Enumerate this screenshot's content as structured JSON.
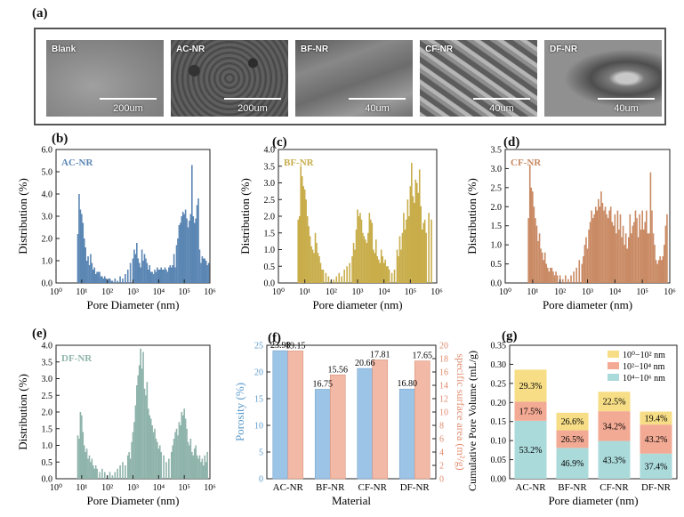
{
  "figure": {
    "labels": {
      "a": "(a)",
      "b": "(b)",
      "c": "(c)",
      "d": "(d)",
      "e": "(e)",
      "f": "(f)",
      "g": "(g)"
    },
    "sem_images": [
      {
        "label": "Blank",
        "scale": "200um"
      },
      {
        "label": "AC-NR",
        "scale": "200um"
      },
      {
        "label": "BF-NR",
        "scale": "40um"
      },
      {
        "label": "CF-NR",
        "scale": "40um"
      },
      {
        "label": "DF-NR",
        "scale": "40um"
      }
    ]
  },
  "colors": {
    "ac": "#5b86b4",
    "bf": "#c8ad4a",
    "cf": "#c98a64",
    "df": "#8fb4ab",
    "porosity": "#9cc4e6",
    "surface": "#f2b9a6",
    "seg1": "#abdadb",
    "seg2": "#f3aa94",
    "seg3": "#f6dd86"
  },
  "chart_data": [
    {
      "type": "bar",
      "panel": "b",
      "title": "AC-NR",
      "xlabel": "Pore Diameter (nm)",
      "ylabel": "Distribution (%)",
      "xscale": "log",
      "xlim": [
        1,
        1000000
      ],
      "ylim": [
        0,
        6.0
      ],
      "yticks": [
        "0.0",
        "1.0",
        "2.0",
        "3.0",
        "4.0",
        "5.0",
        "6.0"
      ],
      "xticks": [
        "10⁰",
        "10¹",
        "10²",
        "10³",
        "10⁴",
        "10⁵",
        "10⁶"
      ],
      "log_x": [
        0.85,
        0.9,
        0.95,
        1.0,
        1.05,
        1.1,
        1.15,
        1.2,
        1.25,
        1.3,
        1.35,
        1.4,
        1.45,
        1.5,
        1.55,
        1.6,
        1.65,
        1.7,
        1.75,
        1.8,
        1.85,
        1.9,
        1.95,
        2.0,
        2.05,
        2.1,
        2.15,
        2.2,
        2.3,
        2.4,
        2.5,
        2.6,
        2.7,
        2.8,
        2.9,
        3.0,
        3.05,
        3.1,
        3.15,
        3.2,
        3.25,
        3.3,
        3.35,
        3.4,
        3.45,
        3.5,
        3.55,
        3.6,
        3.65,
        3.7,
        3.75,
        3.8,
        3.85,
        3.9,
        3.95,
        4.0,
        4.05,
        4.1,
        4.15,
        4.2,
        4.25,
        4.3,
        4.35,
        4.4,
        4.45,
        4.5,
        4.55,
        4.6,
        4.65,
        4.7,
        4.75,
        4.8,
        4.85,
        4.9,
        4.95,
        5.0,
        5.05,
        5.1,
        5.15,
        5.2,
        5.25,
        5.3,
        5.35,
        5.4,
        5.45,
        5.5,
        5.55,
        5.6,
        5.65,
        5.7,
        5.75,
        5.8,
        5.85,
        5.9,
        5.95
      ],
      "values": [
        2.2,
        4.0,
        3.3,
        3.1,
        2.7,
        2.0,
        1.6,
        1.0,
        1.2,
        0.8,
        1.3,
        0.9,
        0.6,
        0.7,
        0.4,
        0.5,
        0.5,
        0.5,
        0.3,
        0.3,
        0.2,
        0.3,
        0.2,
        0.1,
        0.2,
        0.2,
        0.1,
        0.1,
        0.2,
        0.1,
        0.3,
        0.2,
        0.4,
        0.6,
        0.9,
        1.1,
        1.5,
        1.3,
        1.8,
        1.1,
        0.9,
        0.7,
        1.5,
        1.0,
        1.3,
        1.1,
        0.9,
        0.6,
        0.8,
        0.5,
        0.5,
        0.4,
        0.6,
        0.5,
        0.7,
        0.6,
        0.6,
        0.7,
        0.6,
        0.6,
        0.7,
        0.6,
        0.5,
        0.7,
        0.8,
        0.7,
        0.8,
        1.3,
        0.7,
        1.7,
        2.0,
        2.6,
        2.7,
        3.0,
        3.2,
        3.1,
        3.3,
        2.9,
        2.5,
        2.8,
        3.1,
        5.3,
        3.0,
        2.7,
        2.9,
        3.5,
        3.8,
        1.5,
        0.9,
        1.2,
        1.1,
        1.1,
        1.0,
        0.8,
        0.9
      ]
    },
    {
      "type": "bar",
      "panel": "c",
      "title": "BF-NR",
      "xlabel": "Pore diameter (nm)",
      "ylabel": "Distribution (%)",
      "xscale": "log",
      "xlim": [
        1,
        1000000
      ],
      "ylim": [
        0,
        4.0
      ],
      "yticks": [
        "0.0",
        "0.5",
        "1.0",
        "1.5",
        "2.0",
        "2.5",
        "3.0",
        "3.5",
        "4.0"
      ],
      "xticks": [
        "10⁰",
        "10¹",
        "10²",
        "10³",
        "10⁴",
        "10⁵",
        "10⁶"
      ],
      "log_x": [
        0.75,
        0.8,
        0.85,
        0.9,
        0.95,
        1.0,
        1.05,
        1.1,
        1.15,
        1.2,
        1.25,
        1.3,
        1.35,
        1.4,
        1.45,
        1.5,
        1.55,
        1.6,
        1.65,
        1.7,
        1.8,
        1.9,
        2.0,
        2.1,
        2.2,
        2.3,
        2.4,
        2.5,
        2.6,
        2.7,
        2.8,
        2.85,
        2.9,
        2.95,
        3.0,
        3.05,
        3.1,
        3.15,
        3.2,
        3.25,
        3.3,
        3.35,
        3.4,
        3.45,
        3.5,
        3.55,
        3.6,
        3.65,
        3.7,
        3.75,
        3.8,
        3.85,
        3.9,
        3.95,
        4.0,
        4.05,
        4.1,
        4.15,
        4.2,
        4.3,
        4.4,
        4.5,
        4.55,
        4.6,
        4.65,
        4.7,
        4.75,
        4.8,
        4.85,
        4.9,
        4.95,
        5.0,
        5.05,
        5.1,
        5.15,
        5.2,
        5.25,
        5.3,
        5.35,
        5.4,
        5.45,
        5.5,
        5.55,
        5.6,
        5.7,
        5.8
      ],
      "values": [
        1.9,
        2.0,
        3.5,
        3.2,
        2.9,
        2.8,
        2.5,
        2.0,
        1.7,
        1.4,
        1.1,
        1.0,
        0.9,
        1.5,
        1.2,
        0.9,
        0.8,
        0.6,
        0.4,
        0.4,
        0.3,
        0.2,
        0.1,
        0.1,
        0.2,
        0.3,
        0.2,
        0.4,
        0.5,
        0.6,
        0.8,
        1.2,
        1.0,
        1.6,
        2.2,
        2.0,
        2.1,
        1.9,
        1.5,
        1.4,
        1.3,
        1.2,
        1.5,
        2.1,
        1.9,
        1.8,
        1.0,
        0.9,
        1.3,
        0.8,
        0.7,
        0.6,
        1.0,
        0.8,
        0.6,
        0.7,
        0.5,
        0.5,
        0.4,
        0.3,
        0.4,
        1.0,
        0.8,
        1.4,
        1.0,
        1.5,
        2.1,
        1.6,
        1.9,
        2.5,
        2.0,
        2.9,
        3.6,
        2.6,
        2.4,
        3.1,
        3.0,
        2.7,
        3.4,
        2.3,
        1.6,
        1.8,
        1.9,
        1.5,
        2.1,
        1.9
      ]
    },
    {
      "type": "bar",
      "panel": "d",
      "title": "CF-NR",
      "xlabel": "Pore diameter (nm)",
      "ylabel": "Distribution (%)",
      "xscale": "log",
      "xlim": [
        1,
        1000000
      ],
      "ylim": [
        0,
        3.5
      ],
      "yticks": [
        "0.0",
        "0.5",
        "1.0",
        "1.5",
        "2.0",
        "2.5",
        "3.0",
        "3.5"
      ],
      "xticks": [
        "10⁰",
        "10¹",
        "10²",
        "10³",
        "10⁴",
        "10⁵",
        "10⁶"
      ],
      "log_x": [
        0.85,
        0.9,
        0.95,
        1.0,
        1.05,
        1.1,
        1.15,
        1.2,
        1.25,
        1.3,
        1.35,
        1.4,
        1.45,
        1.5,
        1.55,
        1.6,
        1.65,
        1.7,
        1.75,
        1.8,
        1.85,
        1.9,
        2.0,
        2.1,
        2.2,
        2.3,
        2.4,
        2.5,
        2.6,
        2.7,
        2.8,
        2.85,
        2.9,
        2.95,
        3.0,
        3.05,
        3.1,
        3.15,
        3.2,
        3.25,
        3.3,
        3.35,
        3.4,
        3.45,
        3.5,
        3.55,
        3.6,
        3.65,
        3.7,
        3.75,
        3.8,
        3.85,
        3.9,
        3.95,
        4.0,
        4.05,
        4.1,
        4.15,
        4.2,
        4.25,
        4.3,
        4.35,
        4.4,
        4.45,
        4.5,
        4.55,
        4.6,
        4.65,
        4.7,
        4.75,
        4.8,
        4.85,
        4.9,
        4.95,
        5.0,
        5.05,
        5.1,
        5.15,
        5.2,
        5.25,
        5.3,
        5.35,
        5.4,
        5.45,
        5.5,
        5.55,
        5.6,
        5.65,
        5.7,
        5.75,
        5.8,
        5.85,
        5.9
      ],
      "values": [
        1.7,
        3.1,
        2.5,
        2.4,
        2.0,
        1.7,
        1.5,
        1.1,
        1.3,
        0.9,
        0.8,
        0.6,
        0.8,
        0.5,
        0.4,
        0.3,
        0.4,
        0.4,
        0.3,
        0.2,
        0.3,
        0.2,
        0.2,
        0.1,
        0.2,
        0.1,
        0.2,
        0.3,
        0.4,
        0.6,
        0.5,
        0.7,
        1.0,
        1.2,
        0.9,
        1.4,
        1.6,
        1.9,
        1.7,
        1.8,
        2.0,
        1.9,
        2.2,
        2.0,
        2.4,
        2.1,
        1.9,
        2.0,
        1.8,
        1.7,
        1.9,
        2.0,
        1.6,
        1.5,
        1.8,
        1.3,
        1.9,
        1.4,
        1.8,
        1.2,
        1.5,
        1.0,
        1.3,
        0.9,
        1.2,
        1.8,
        1.3,
        1.5,
        1.6,
        1.9,
        1.7,
        1.2,
        1.8,
        1.4,
        1.9,
        1.4,
        1.6,
        1.9,
        1.3,
        1.3,
        2.9,
        1.9,
        1.3,
        1.0,
        0.6,
        0.5,
        0.6,
        0.7,
        0.6,
        0.7,
        1.0,
        1.5,
        1.8
      ]
    },
    {
      "type": "bar",
      "panel": "e",
      "title": "DF-NR",
      "xlabel": "Pore Diameter (nm)",
      "ylabel": "Distribution (%)",
      "xscale": "log",
      "xlim": [
        1,
        1000000
      ],
      "ylim": [
        0,
        4.0
      ],
      "yticks": [
        "0.0",
        "0.5",
        "1.0",
        "1.5",
        "2.0",
        "2.5",
        "3.0",
        "3.5",
        "4.0"
      ],
      "xticks": [
        "10⁰",
        "10¹",
        "10²",
        "10³",
        "10⁴",
        "10⁵",
        "10⁶"
      ],
      "log_x": [
        0.85,
        0.9,
        0.95,
        1.0,
        1.05,
        1.1,
        1.15,
        1.2,
        1.25,
        1.3,
        1.35,
        1.4,
        1.45,
        1.5,
        1.55,
        1.6,
        1.7,
        1.8,
        1.9,
        2.0,
        2.1,
        2.2,
        2.3,
        2.4,
        2.5,
        2.6,
        2.7,
        2.8,
        2.85,
        2.9,
        2.95,
        3.0,
        3.05,
        3.1,
        3.15,
        3.2,
        3.25,
        3.3,
        3.35,
        3.4,
        3.45,
        3.5,
        3.55,
        3.6,
        3.65,
        3.7,
        3.75,
        3.8,
        3.85,
        3.9,
        3.95,
        4.0,
        4.05,
        4.1,
        4.2,
        4.3,
        4.4,
        4.5,
        4.55,
        4.6,
        4.65,
        4.7,
        4.75,
        4.8,
        4.85,
        4.9,
        4.95,
        5.0,
        5.05,
        5.1,
        5.15,
        5.2,
        5.25,
        5.3,
        5.35,
        5.4,
        5.45,
        5.5,
        5.55,
        5.6,
        5.65,
        5.7,
        5.75,
        5.8,
        5.85,
        5.9
      ],
      "values": [
        1.3,
        1.2,
        2.0,
        1.9,
        1.4,
        1.0,
        0.8,
        0.9,
        0.6,
        0.7,
        0.5,
        0.6,
        0.4,
        0.3,
        0.4,
        0.3,
        0.2,
        0.3,
        0.2,
        0.1,
        0.2,
        0.1,
        0.2,
        0.3,
        0.4,
        0.5,
        0.4,
        0.7,
        0.8,
        0.6,
        1.1,
        1.4,
        1.7,
        2.2,
        2.8,
        3.1,
        3.4,
        3.9,
        3.3,
        3.8,
        2.7,
        2.5,
        2.9,
        2.1,
        1.9,
        1.8,
        1.6,
        1.4,
        1.5,
        1.2,
        1.1,
        0.9,
        1.0,
        0.8,
        0.7,
        0.5,
        0.6,
        0.8,
        1.0,
        1.2,
        1.4,
        1.5,
        1.3,
        1.7,
        1.6,
        2.0,
        1.9,
        2.1,
        1.8,
        1.5,
        1.1,
        1.0,
        1.2,
        0.8,
        0.7,
        0.9,
        1.0,
        0.7,
        0.6,
        0.7,
        0.5,
        0.6,
        0.4,
        0.7,
        0.5,
        0.8
      ]
    },
    {
      "type": "bar",
      "panel": "f",
      "xlabel": "Material",
      "ylabel_left": "Porosity (%)",
      "ylabel_right": "specific surface area (m²/g)",
      "categories": [
        "AC-NR",
        "BF-NR",
        "CF-NR",
        "DF-NR"
      ],
      "ylim_left": [
        0,
        25
      ],
      "ylim_right": [
        0,
        20
      ],
      "yticks_left": [
        "0",
        "5",
        "10",
        "15",
        "20",
        "25"
      ],
      "yticks_right": [
        "0",
        "2",
        "4",
        "6",
        "8",
        "10",
        "12",
        "14",
        "16",
        "18",
        "20"
      ],
      "series": [
        {
          "name": "Porosity",
          "values": [
            23.98,
            16.75,
            20.66,
            16.8
          ],
          "labels": [
            "23.98",
            "16.75",
            "20.66",
            "16.80"
          ]
        },
        {
          "name": "Specific surface area",
          "values": [
            19.15,
            15.56,
            17.81,
            17.65
          ],
          "labels": [
            "19.15",
            "15.56",
            "17.81",
            "17.65"
          ]
        }
      ]
    },
    {
      "type": "bar",
      "panel": "g",
      "stacked": true,
      "xlabel": "Pore diameter (nm)",
      "ylabel": "Cumulative Pore Volume (mL/g)",
      "categories": [
        "AC-NR",
        "BF-NR",
        "CF-NR",
        "DF-NR"
      ],
      "ylim": [
        0,
        0.35
      ],
      "yticks": [
        "0.00",
        "0.05",
        "0.10",
        "0.15",
        "0.20",
        "0.25",
        "0.30",
        "0.35"
      ],
      "legend": [
        "10⁰−10² nm",
        "10²−10⁴ nm",
        "10⁴−10⁶ nm"
      ],
      "legend_position": "top-right",
      "series": [
        {
          "name": "10⁴−10⁶ nm",
          "values": [
            0.152,
            0.081,
            0.099,
            0.066
          ],
          "labels": [
            "53.2%",
            "46.9%",
            "43.3%",
            "37.4%"
          ]
        },
        {
          "name": "10²−10⁴ nm",
          "values": [
            0.05,
            0.046,
            0.078,
            0.076
          ],
          "labels": [
            "17.5%",
            "26.5%",
            "34.2%",
            "43.2%"
          ]
        },
        {
          "name": "10⁰−10² nm",
          "values": [
            0.084,
            0.046,
            0.051,
            0.034
          ],
          "labels": [
            "29.3%",
            "26.6%",
            "22.5%",
            "19.4%"
          ]
        }
      ]
    }
  ]
}
